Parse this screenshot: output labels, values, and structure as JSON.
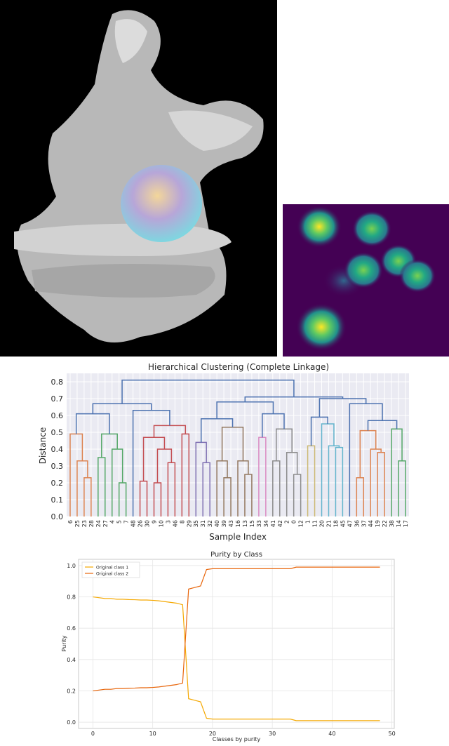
{
  "chart_data": [
    {
      "type": "dendrogram",
      "title": "Hierarchical Clustering (Complete Linkage)",
      "x_label": "Sample Index",
      "y_label": "Distance",
      "leaves": [
        "6",
        "25",
        "23",
        "28",
        "24",
        "27",
        "4",
        "5",
        "7",
        "48",
        "26",
        "30",
        "9",
        "10",
        "3",
        "46",
        "8",
        "29",
        "35",
        "31",
        "32",
        "40",
        "39",
        "43",
        "16",
        "13",
        "15",
        "33",
        "34",
        "41",
        "42",
        "2",
        "0",
        "12",
        "1",
        "11",
        "20",
        "21",
        "18",
        "45",
        "47",
        "36",
        "37",
        "44",
        "19",
        "22",
        "38",
        "14",
        "17"
      ],
      "merges": [
        {
          "left": 2,
          "right": 3,
          "height": 0.23,
          "color": "#dd8452"
        },
        {
          "left": 1,
          "right": 49,
          "height": 0.33,
          "color": "#dd8452"
        },
        {
          "left": 0,
          "right": 50,
          "height": 0.49,
          "color": "#dd8452"
        },
        {
          "left": 7,
          "right": 8,
          "height": 0.2,
          "color": "#55a868"
        },
        {
          "left": 6,
          "right": 52,
          "height": 0.4,
          "color": "#55a868"
        },
        {
          "left": 4,
          "right": 5,
          "height": 0.35,
          "color": "#55a868"
        },
        {
          "left": 54,
          "right": 53,
          "height": 0.49,
          "color": "#55a868"
        },
        {
          "left": 51,
          "right": 55,
          "height": 0.61,
          "color": "#4c72b0"
        },
        {
          "left": 10,
          "right": 11,
          "height": 0.21,
          "color": "#c44e52"
        },
        {
          "left": 12,
          "right": 13,
          "height": 0.2,
          "color": "#c44e52"
        },
        {
          "left": 14,
          "right": 15,
          "height": 0.32,
          "color": "#c44e52"
        },
        {
          "left": 58,
          "right": 59,
          "height": 0.4,
          "color": "#c44e52"
        },
        {
          "left": 57,
          "right": 60,
          "height": 0.47,
          "color": "#c44e52"
        },
        {
          "left": 16,
          "right": 17,
          "height": 0.49,
          "color": "#c44e52"
        },
        {
          "left": 61,
          "right": 62,
          "height": 0.54,
          "color": "#c44e52"
        },
        {
          "left": 9,
          "right": 63,
          "height": 0.63,
          "color": "#4c72b0"
        },
        {
          "left": 56,
          "right": 64,
          "height": 0.67,
          "color": "#4c72b0"
        },
        {
          "left": 19,
          "right": 20,
          "height": 0.32,
          "color": "#8172b3"
        },
        {
          "left": 18,
          "right": 66,
          "height": 0.44,
          "color": "#8172b3"
        },
        {
          "left": 22,
          "right": 23,
          "height": 0.23,
          "color": "#937860"
        },
        {
          "left": 21,
          "right": 68,
          "height": 0.33,
          "color": "#937860"
        },
        {
          "left": 25,
          "right": 26,
          "height": 0.25,
          "color": "#937860"
        },
        {
          "left": 24,
          "right": 70,
          "height": 0.33,
          "color": "#937860"
        },
        {
          "left": 69,
          "right": 71,
          "height": 0.53,
          "color": "#937860"
        },
        {
          "left": 67,
          "right": 72,
          "height": 0.58,
          "color": "#4c72b0"
        },
        {
          "left": 27,
          "right": 28,
          "height": 0.47,
          "color": "#da8bc3"
        },
        {
          "left": 29,
          "right": 30,
          "height": 0.33,
          "color": "#8c8c8c"
        },
        {
          "left": 32,
          "right": 33,
          "height": 0.25,
          "color": "#8c8c8c"
        },
        {
          "left": 31,
          "right": 76,
          "height": 0.38,
          "color": "#8c8c8c"
        },
        {
          "left": 75,
          "right": 77,
          "height": 0.52,
          "color": "#8c8c8c"
        },
        {
          "left": 74,
          "right": 78,
          "height": 0.61,
          "color": "#4c72b0"
        },
        {
          "left": 73,
          "right": 79,
          "height": 0.68,
          "color": "#4c72b0"
        },
        {
          "left": 34,
          "right": 35,
          "height": 0.42,
          "color": "#ccb974"
        },
        {
          "left": 38,
          "right": 39,
          "height": 0.41,
          "color": "#64b5cd"
        },
        {
          "left": 37,
          "right": 82,
          "height": 0.42,
          "color": "#64b5cd"
        },
        {
          "left": 36,
          "right": 83,
          "height": 0.55,
          "color": "#64b5cd"
        },
        {
          "left": 81,
          "right": 84,
          "height": 0.59,
          "color": "#4c72b0"
        },
        {
          "left": 41,
          "right": 42,
          "height": 0.23,
          "color": "#dd8452"
        },
        {
          "left": 44,
          "right": 45,
          "height": 0.38,
          "color": "#dd8452"
        },
        {
          "left": 43,
          "right": 87,
          "height": 0.4,
          "color": "#dd8452"
        },
        {
          "left": 86,
          "right": 88,
          "height": 0.51,
          "color": "#dd8452"
        },
        {
          "left": 47,
          "right": 48,
          "height": 0.33,
          "color": "#55a868"
        },
        {
          "left": 46,
          "right": 90,
          "height": 0.52,
          "color": "#55a868"
        },
        {
          "left": 89,
          "right": 91,
          "height": 0.57,
          "color": "#4c72b0"
        },
        {
          "left": 40,
          "right": 92,
          "height": 0.67,
          "color": "#4c72b0"
        },
        {
          "left": 85,
          "right": 93,
          "height": 0.7,
          "color": "#4c72b0"
        },
        {
          "left": 80,
          "right": 94,
          "height": 0.71,
          "color": "#4c72b0"
        },
        {
          "left": 65,
          "right": 95,
          "height": 0.81,
          "color": "#4c72b0"
        }
      ],
      "ylim": [
        0,
        0.85
      ],
      "yticks": [
        {
          "value": 0,
          "label": "0.0"
        },
        {
          "value": 0.1,
          "label": "0.1"
        },
        {
          "value": 0.2,
          "label": "0.2"
        },
        {
          "value": 0.3,
          "label": "0.3"
        },
        {
          "value": 0.4,
          "label": "0.4"
        },
        {
          "value": 0.5,
          "label": "0.5"
        },
        {
          "value": 0.6,
          "label": "0.6"
        },
        {
          "value": 0.7,
          "label": "0.7"
        },
        {
          "value": 0.8,
          "label": "0.8"
        }
      ],
      "grid": true
    },
    {
      "type": "line",
      "title": "Purity by Class",
      "x_label": "Classes by purity",
      "y_label": "Purity",
      "x": [
        0,
        1,
        2,
        3,
        4,
        5,
        6,
        7,
        8,
        9,
        10,
        11,
        12,
        13,
        14,
        15,
        16,
        17,
        18,
        19,
        20,
        21,
        22,
        23,
        24,
        25,
        26,
        27,
        28,
        29,
        30,
        31,
        32,
        33,
        34,
        35,
        36,
        37,
        38,
        39,
        40,
        41,
        42,
        43,
        44,
        45,
        46,
        47,
        48
      ],
      "series": [
        {
          "name": "Original class 1",
          "color": "#f5a800",
          "values": [
            0.8,
            0.795,
            0.79,
            0.79,
            0.785,
            0.785,
            0.783,
            0.782,
            0.78,
            0.78,
            0.778,
            0.775,
            0.77,
            0.765,
            0.76,
            0.75,
            0.15,
            0.14,
            0.13,
            0.025,
            0.02,
            0.02,
            0.02,
            0.02,
            0.02,
            0.02,
            0.02,
            0.02,
            0.02,
            0.02,
            0.02,
            0.02,
            0.02,
            0.02,
            0.01,
            0.01,
            0.01,
            0.01,
            0.01,
            0.01,
            0.01,
            0.01,
            0.01,
            0.01,
            0.01,
            0.01,
            0.01,
            0.01,
            0.01
          ]
        },
        {
          "name": "Original class 2",
          "color": "#e8650a",
          "values": [
            0.2,
            0.205,
            0.21,
            0.21,
            0.215,
            0.215,
            0.217,
            0.218,
            0.22,
            0.22,
            0.222,
            0.225,
            0.23,
            0.235,
            0.24,
            0.25,
            0.85,
            0.86,
            0.87,
            0.975,
            0.98,
            0.98,
            0.98,
            0.98,
            0.98,
            0.98,
            0.98,
            0.98,
            0.98,
            0.98,
            0.98,
            0.98,
            0.98,
            0.98,
            0.99,
            0.99,
            0.99,
            0.99,
            0.99,
            0.99,
            0.99,
            0.99,
            0.99,
            0.99,
            0.99,
            0.99,
            0.99,
            0.99,
            0.99
          ]
        }
      ],
      "xlim": [
        -2.4,
        50.4
      ],
      "xticks": [
        0,
        10,
        20,
        30,
        40,
        50
      ],
      "ylim": [
        -0.04,
        1.04
      ],
      "yticks": [
        {
          "value": 0,
          "label": "0.0"
        },
        {
          "value": 0.2,
          "label": "0.2"
        },
        {
          "value": 0.4,
          "label": "0.4"
        },
        {
          "value": 0.6,
          "label": "0.6"
        },
        {
          "value": 0.8,
          "label": "0.8"
        },
        {
          "value": 1.0,
          "label": "1.0"
        }
      ],
      "grid": true,
      "legend": "upper left"
    }
  ]
}
